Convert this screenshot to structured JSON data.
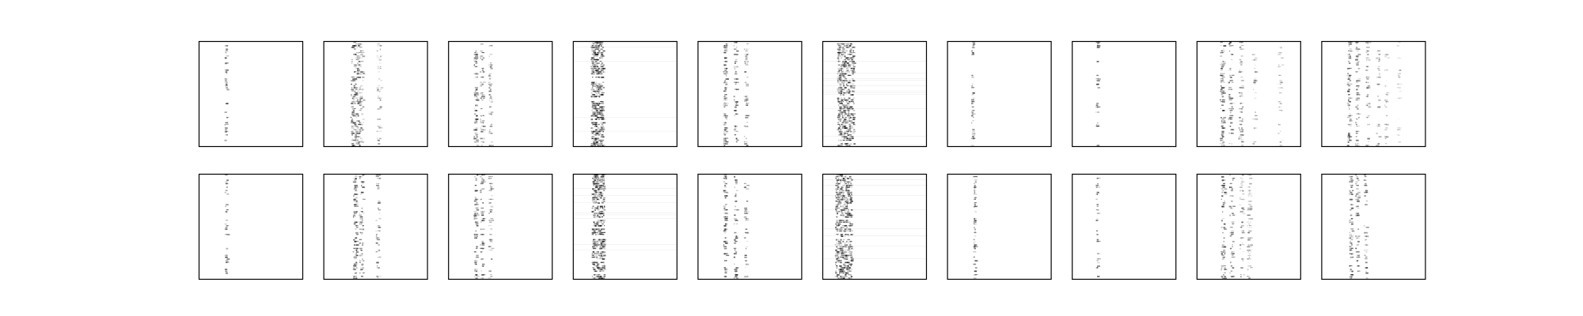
{
  "figure": {
    "background": "#ffffff",
    "frame_color": "#000000",
    "mark_color": "#000000"
  },
  "chart_data": {
    "type": "heatmap",
    "title": "",
    "grid": false,
    "legend": false,
    "axes_ticks": false,
    "rows": 2,
    "cols": 10,
    "panels": [
      {
        "row": 0,
        "col": 0,
        "pattern": "column",
        "column": 0.26,
        "intensity": 0.55,
        "density": 0.55,
        "spread": 0.012
      },
      {
        "row": 0,
        "col": 1,
        "pattern": "multi",
        "columns": [
          0.28,
          0.32,
          0.36,
          0.53
        ],
        "intensity": 0.6,
        "density": 0.85,
        "spread": 0.02
      },
      {
        "row": 0,
        "col": 2,
        "pattern": "multi",
        "columns": [
          0.26,
          0.32,
          0.4
        ],
        "intensity": 0.55,
        "density": 0.6,
        "spread": 0.015
      },
      {
        "row": 0,
        "col": 3,
        "pattern": "band",
        "column": 0.23,
        "intensity": 0.6,
        "density": 0.9,
        "spread": 0.06
      },
      {
        "row": 0,
        "col": 4,
        "pattern": "multi",
        "columns": [
          0.26,
          0.36,
          0.46
        ],
        "intensity": 0.6,
        "density": 0.65,
        "spread": 0.015
      },
      {
        "row": 0,
        "col": 5,
        "pattern": "band",
        "column": 0.22,
        "intensity": 0.6,
        "density": 0.95,
        "spread": 0.08
      },
      {
        "row": 0,
        "col": 6,
        "pattern": "column",
        "column": 0.24,
        "intensity": 0.5,
        "density": 0.55,
        "spread": 0.01
      },
      {
        "row": 0,
        "col": 7,
        "pattern": "column",
        "column": 0.24,
        "intensity": 0.5,
        "density": 0.35,
        "spread": 0.01
      },
      {
        "row": 0,
        "col": 8,
        "pattern": "multi",
        "columns": [
          0.24,
          0.32,
          0.42,
          0.55,
          0.8
        ],
        "intensity": 0.6,
        "density": 0.75,
        "spread": 0.018
      },
      {
        "row": 0,
        "col": 9,
        "pattern": "multi",
        "columns": [
          0.26,
          0.34,
          0.44,
          0.54,
          0.62,
          0.74
        ],
        "intensity": 0.55,
        "density": 0.7,
        "spread": 0.015
      },
      {
        "row": 1,
        "col": 0,
        "pattern": "column",
        "column": 0.26,
        "intensity": 0.55,
        "density": 0.5,
        "spread": 0.012
      },
      {
        "row": 1,
        "col": 1,
        "pattern": "multi",
        "columns": [
          0.3,
          0.36,
          0.52
        ],
        "intensity": 0.6,
        "density": 0.8,
        "spread": 0.018
      },
      {
        "row": 1,
        "col": 2,
        "pattern": "multi",
        "columns": [
          0.26,
          0.32,
          0.4
        ],
        "intensity": 0.55,
        "density": 0.6,
        "spread": 0.015
      },
      {
        "row": 1,
        "col": 3,
        "pattern": "band",
        "column": 0.24,
        "intensity": 0.6,
        "density": 0.9,
        "spread": 0.06
      },
      {
        "row": 1,
        "col": 4,
        "pattern": "multi",
        "columns": [
          0.26,
          0.36,
          0.46
        ],
        "intensity": 0.6,
        "density": 0.6,
        "spread": 0.015
      },
      {
        "row": 1,
        "col": 5,
        "pattern": "band",
        "column": 0.2,
        "intensity": 0.6,
        "density": 0.95,
        "spread": 0.08
      },
      {
        "row": 1,
        "col": 6,
        "pattern": "column",
        "column": 0.26,
        "intensity": 0.5,
        "density": 0.6,
        "spread": 0.01
      },
      {
        "row": 1,
        "col": 7,
        "pattern": "column",
        "column": 0.24,
        "intensity": 0.5,
        "density": 0.35,
        "spread": 0.01
      },
      {
        "row": 1,
        "col": 8,
        "pattern": "multi",
        "columns": [
          0.25,
          0.33,
          0.43,
          0.5
        ],
        "intensity": 0.6,
        "density": 0.7,
        "spread": 0.018
      },
      {
        "row": 1,
        "col": 9,
        "pattern": "multi",
        "columns": [
          0.28,
          0.34,
          0.42
        ],
        "intensity": 0.55,
        "density": 0.6,
        "spread": 0.015
      }
    ]
  }
}
